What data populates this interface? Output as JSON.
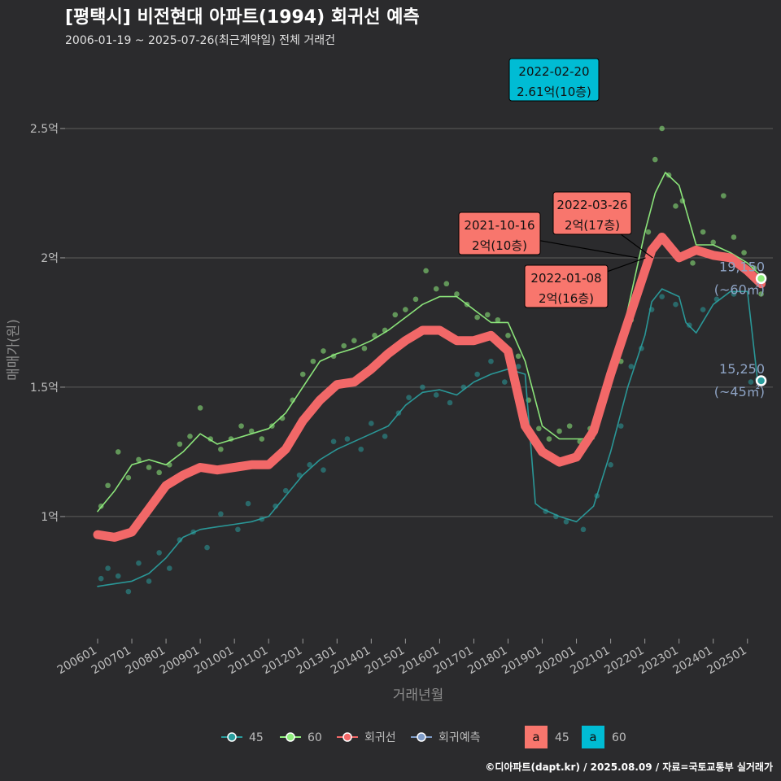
{
  "header": {
    "title": "[평택시] 비전현대 아파트(1994) 회귀선 예측",
    "subtitle": "2006-01-19 ~ 2025-07-26(최근계약일) 전체 거래건"
  },
  "caption": "©디아파트(dapt.kr) / 2025.08.09 / 자료=국토교통부 실거래가",
  "chart_data": {
    "type": "line",
    "xlabel": "거래년월",
    "ylabel": "매매가(원)",
    "x_range": [
      2006.0,
      2025.6
    ],
    "ylim": [
      0.55,
      2.72
    ],
    "x_ticks": [
      "200601",
      "200701",
      "200801",
      "200901",
      "201001",
      "201101",
      "201201",
      "201301",
      "201401",
      "201501",
      "201601",
      "201701",
      "201801",
      "201901",
      "202001",
      "202101",
      "202201",
      "202301",
      "202401",
      "202501"
    ],
    "y_ticks": [
      {
        "value": 1.0,
        "label": "1억"
      },
      {
        "value": 1.5,
        "label": "1.5억"
      },
      {
        "value": 2.0,
        "label": "2억"
      },
      {
        "value": 2.5,
        "label": "2.5억"
      }
    ],
    "grid": "horizontal",
    "legend_position": "bottom",
    "colors": {
      "s45": "#2a9d9d",
      "s60": "#90ee7e",
      "regression": "#f26868",
      "forecast": "#7f9cc8",
      "label45": "#00bcd4",
      "label60": "#f8766d"
    },
    "series": [
      {
        "name": "45",
        "color": "#2a9d9d",
        "x": [
          2006.0,
          2006.5,
          2007.0,
          2007.5,
          2008.0,
          2008.5,
          2009.0,
          2009.5,
          2010.0,
          2010.5,
          2011.0,
          2011.5,
          2012.0,
          2012.5,
          2013.0,
          2013.5,
          2014.0,
          2014.5,
          2015.0,
          2015.5,
          2016.0,
          2016.5,
          2017.0,
          2017.5,
          2018.0,
          2018.5,
          2018.8,
          2019.0,
          2019.5,
          2020.0,
          2020.5,
          2021.0,
          2021.5,
          2022.0,
          2022.2,
          2022.5,
          2023.0,
          2023.2,
          2023.5,
          2024.0,
          2024.5,
          2025.0,
          2025.3
        ],
        "y": [
          0.73,
          0.74,
          0.75,
          0.78,
          0.84,
          0.92,
          0.95,
          0.96,
          0.97,
          0.98,
          1.0,
          1.08,
          1.16,
          1.22,
          1.26,
          1.29,
          1.32,
          1.35,
          1.43,
          1.48,
          1.49,
          1.47,
          1.52,
          1.55,
          1.57,
          1.55,
          1.05,
          1.03,
          1.0,
          0.98,
          1.04,
          1.25,
          1.5,
          1.7,
          1.83,
          1.88,
          1.85,
          1.75,
          1.71,
          1.82,
          1.87,
          1.87,
          1.52
        ]
      },
      {
        "name": "60",
        "color": "#90ee7e",
        "x": [
          2006.0,
          2006.5,
          2007.0,
          2007.5,
          2008.0,
          2008.5,
          2009.0,
          2009.5,
          2010.0,
          2010.5,
          2011.0,
          2011.5,
          2012.0,
          2012.5,
          2013.0,
          2013.5,
          2014.0,
          2014.5,
          2015.0,
          2015.5,
          2016.0,
          2016.5,
          2017.0,
          2017.5,
          2018.0,
          2018.5,
          2019.0,
          2019.5,
          2020.0,
          2020.5,
          2021.0,
          2021.5,
          2022.0,
          2022.3,
          2022.6,
          2023.0,
          2023.5,
          2024.0,
          2024.5,
          2025.0,
          2025.4
        ],
        "y": [
          1.02,
          1.1,
          1.2,
          1.22,
          1.2,
          1.25,
          1.32,
          1.28,
          1.3,
          1.32,
          1.34,
          1.4,
          1.5,
          1.6,
          1.63,
          1.65,
          1.68,
          1.72,
          1.77,
          1.82,
          1.85,
          1.85,
          1.8,
          1.75,
          1.75,
          1.6,
          1.35,
          1.3,
          1.3,
          1.3,
          1.5,
          1.8,
          2.1,
          2.25,
          2.33,
          2.28,
          2.05,
          2.05,
          2.02,
          1.98,
          1.93
        ]
      },
      {
        "name": "회귀선",
        "color": "#f26868",
        "x": [
          2006.0,
          2006.5,
          2007.0,
          2007.5,
          2008.0,
          2008.5,
          2009.0,
          2009.5,
          2010.0,
          2010.5,
          2011.0,
          2011.5,
          2012.0,
          2012.5,
          2013.0,
          2013.5,
          2014.0,
          2014.5,
          2015.0,
          2015.5,
          2016.0,
          2016.5,
          2017.0,
          2017.5,
          2018.0,
          2018.5,
          2019.0,
          2019.5,
          2020.0,
          2020.5,
          2021.0,
          2021.5,
          2022.0,
          2022.2,
          2022.5,
          2023.0,
          2023.5,
          2024.0,
          2024.5,
          2025.0,
          2025.4
        ],
        "y": [
          0.93,
          0.92,
          0.94,
          1.03,
          1.12,
          1.16,
          1.19,
          1.18,
          1.19,
          1.2,
          1.2,
          1.26,
          1.37,
          1.45,
          1.51,
          1.52,
          1.57,
          1.63,
          1.68,
          1.72,
          1.72,
          1.68,
          1.68,
          1.7,
          1.64,
          1.35,
          1.25,
          1.21,
          1.23,
          1.33,
          1.55,
          1.75,
          1.95,
          2.03,
          2.08,
          2.0,
          2.03,
          2.01,
          2.0,
          1.95,
          1.9
        ]
      },
      {
        "name": "회귀예측",
        "color": "#7f9cc8",
        "x": [],
        "y": []
      }
    ],
    "scatter_points": {
      "45": [
        [
          2006.1,
          0.76
        ],
        [
          2006.3,
          0.8
        ],
        [
          2006.6,
          0.77
        ],
        [
          2006.9,
          0.71
        ],
        [
          2007.2,
          0.82
        ],
        [
          2007.5,
          0.75
        ],
        [
          2007.8,
          0.86
        ],
        [
          2008.1,
          0.8
        ],
        [
          2008.4,
          0.91
        ],
        [
          2008.8,
          0.94
        ],
        [
          2009.2,
          0.88
        ],
        [
          2009.6,
          1.01
        ],
        [
          2010.1,
          0.95
        ],
        [
          2010.4,
          1.05
        ],
        [
          2010.8,
          0.99
        ],
        [
          2011.2,
          1.04
        ],
        [
          2011.5,
          1.1
        ],
        [
          2011.9,
          1.16
        ],
        [
          2012.2,
          1.2
        ],
        [
          2012.6,
          1.18
        ],
        [
          2012.9,
          1.29
        ],
        [
          2013.3,
          1.3
        ],
        [
          2013.7,
          1.26
        ],
        [
          2014.0,
          1.36
        ],
        [
          2014.4,
          1.31
        ],
        [
          2014.8,
          1.4
        ],
        [
          2015.1,
          1.46
        ],
        [
          2015.5,
          1.5
        ],
        [
          2015.9,
          1.47
        ],
        [
          2016.3,
          1.44
        ],
        [
          2016.7,
          1.5
        ],
        [
          2017.1,
          1.55
        ],
        [
          2017.5,
          1.6
        ],
        [
          2017.9,
          1.52
        ],
        [
          2018.3,
          1.58
        ],
        [
          2019.1,
          1.02
        ],
        [
          2019.4,
          1.0
        ],
        [
          2019.7,
          0.98
        ],
        [
          2020.2,
          0.95
        ],
        [
          2020.6,
          1.08
        ],
        [
          2021.0,
          1.2
        ],
        [
          2021.3,
          1.35
        ],
        [
          2021.6,
          1.58
        ],
        [
          2021.9,
          1.65
        ],
        [
          2022.2,
          1.8
        ],
        [
          2022.5,
          1.85
        ],
        [
          2022.9,
          1.82
        ],
        [
          2023.3,
          1.74
        ],
        [
          2023.7,
          1.8
        ],
        [
          2024.1,
          1.84
        ],
        [
          2024.6,
          1.86
        ],
        [
          2025.1,
          1.52
        ],
        [
          2025.3,
          1.53
        ]
      ],
      "60": [
        [
          2006.1,
          1.04
        ],
        [
          2006.3,
          1.12
        ],
        [
          2006.6,
          1.25
        ],
        [
          2006.9,
          1.15
        ],
        [
          2007.2,
          1.22
        ],
        [
          2007.5,
          1.19
        ],
        [
          2007.8,
          1.17
        ],
        [
          2008.1,
          1.2
        ],
        [
          2008.4,
          1.28
        ],
        [
          2008.7,
          1.31
        ],
        [
          2009.0,
          1.42
        ],
        [
          2009.3,
          1.3
        ],
        [
          2009.6,
          1.26
        ],
        [
          2009.9,
          1.3
        ],
        [
          2010.2,
          1.35
        ],
        [
          2010.5,
          1.33
        ],
        [
          2010.8,
          1.3
        ],
        [
          2011.1,
          1.35
        ],
        [
          2011.4,
          1.38
        ],
        [
          2011.7,
          1.45
        ],
        [
          2012.0,
          1.55
        ],
        [
          2012.3,
          1.6
        ],
        [
          2012.6,
          1.64
        ],
        [
          2012.9,
          1.62
        ],
        [
          2013.2,
          1.66
        ],
        [
          2013.5,
          1.68
        ],
        [
          2013.8,
          1.65
        ],
        [
          2014.1,
          1.7
        ],
        [
          2014.4,
          1.72
        ],
        [
          2014.7,
          1.78
        ],
        [
          2015.0,
          1.8
        ],
        [
          2015.3,
          1.84
        ],
        [
          2015.6,
          1.95
        ],
        [
          2015.9,
          1.88
        ],
        [
          2016.2,
          1.9
        ],
        [
          2016.5,
          1.86
        ],
        [
          2016.8,
          1.82
        ],
        [
          2017.1,
          1.77
        ],
        [
          2017.4,
          1.78
        ],
        [
          2017.7,
          1.76
        ],
        [
          2018.0,
          1.7
        ],
        [
          2018.3,
          1.62
        ],
        [
          2018.6,
          1.45
        ],
        [
          2018.9,
          1.34
        ],
        [
          2019.2,
          1.3
        ],
        [
          2019.5,
          1.33
        ],
        [
          2019.8,
          1.35
        ],
        [
          2020.1,
          1.29
        ],
        [
          2020.4,
          1.34
        ],
        [
          2020.7,
          1.42
        ],
        [
          2021.0,
          1.55
        ],
        [
          2021.3,
          1.6
        ],
        [
          2021.6,
          1.76
        ],
        [
          2021.9,
          1.92
        ],
        [
          2022.1,
          2.1
        ],
        [
          2022.3,
          2.38
        ],
        [
          2022.5,
          2.5
        ],
        [
          2022.7,
          2.32
        ],
        [
          2022.9,
          2.2
        ],
        [
          2023.1,
          2.22
        ],
        [
          2023.4,
          1.98
        ],
        [
          2023.7,
          2.1
        ],
        [
          2024.0,
          2.06
        ],
        [
          2024.3,
          2.24
        ],
        [
          2024.6,
          2.08
        ],
        [
          2024.9,
          2.02
        ],
        [
          2025.2,
          1.96
        ],
        [
          2025.4,
          1.86
        ]
      ]
    },
    "annotations": [
      {
        "date": "2022-02-20",
        "price": "2.61억(10층)",
        "series": "60",
        "x": 2022.14,
        "y": 2.61
      },
      {
        "date": "2022-03-26",
        "price": "2억(17층)",
        "series": "45",
        "x": 2022.23,
        "y": 2.0
      },
      {
        "date": "2021-10-16",
        "price": "2억(10층)",
        "series": "45",
        "x": 2021.79,
        "y": 2.0
      },
      {
        "date": "2022-01-08",
        "price": "2억(16층)",
        "series": "45",
        "x": 2022.02,
        "y": 2.0
      }
    ],
    "end_labels": [
      {
        "value": "19,150",
        "area": "(~60㎡)",
        "color": "#90ee7e",
        "x": 2025.4,
        "y": 1.92
      },
      {
        "value": "15,250",
        "area": "(~45㎡)",
        "color": "#2a9d9d",
        "x": 2025.4,
        "y": 1.525
      }
    ],
    "legend": {
      "items": [
        {
          "label": "45",
          "color": "#2a9d9d"
        },
        {
          "label": "60",
          "color": "#90ee7e"
        },
        {
          "label": "회귀선",
          "color": "#f26868"
        },
        {
          "label": "회귀예측",
          "color": "#7f9cc8"
        }
      ],
      "label_items": [
        {
          "glyph": "a",
          "label": "45",
          "color": "#f8766d"
        },
        {
          "glyph": "a",
          "label": "60",
          "color": "#00bcd4"
        }
      ]
    }
  }
}
